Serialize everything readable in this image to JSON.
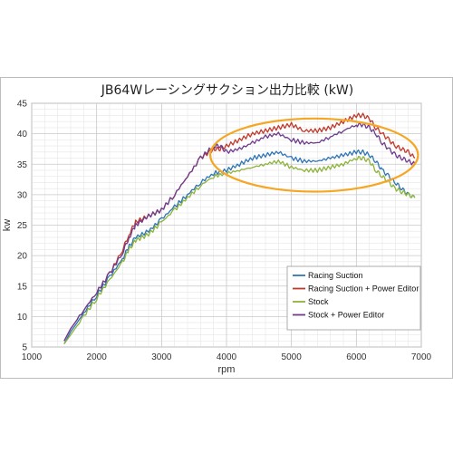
{
  "chart_data": {
    "type": "line",
    "title": "JB64Wレーシングサクション出力比較 (kW)",
    "xlabel": "rpm",
    "ylabel": "kw",
    "xlim": [
      1000,
      7000
    ],
    "ylim": [
      5,
      45
    ],
    "xticks": [
      "1000",
      "2000",
      "3000",
      "4000",
      "5000",
      "6000",
      "7000"
    ],
    "yticks": [
      "5",
      "10",
      "15",
      "20",
      "25",
      "30",
      "35",
      "40",
      "45"
    ],
    "grid": true,
    "legend_position": "bottom-right",
    "highlight": {
      "shape": "ellipse",
      "color": "#F5A623",
      "x_range": [
        3750,
        6950
      ],
      "y_range": [
        30.5,
        42.5
      ]
    },
    "series": [
      {
        "name": "Racing Suction",
        "color": "#2E75B6",
        "points": [
          [
            1500,
            5.5
          ],
          [
            1600,
            7.5
          ],
          [
            1800,
            10.5
          ],
          [
            2000,
            13.5
          ],
          [
            2200,
            16.5
          ],
          [
            2400,
            19.5
          ],
          [
            2500,
            21.5
          ],
          [
            2600,
            23
          ],
          [
            2800,
            24
          ],
          [
            3000,
            26
          ],
          [
            3200,
            28
          ],
          [
            3400,
            30
          ],
          [
            3600,
            32
          ],
          [
            3800,
            33.5
          ],
          [
            4000,
            34
          ],
          [
            4200,
            35
          ],
          [
            4400,
            36
          ],
          [
            4600,
            36.5
          ],
          [
            4800,
            37
          ],
          [
            5000,
            36
          ],
          [
            5200,
            35.5
          ],
          [
            5400,
            35.5
          ],
          [
            5600,
            36
          ],
          [
            5800,
            36.5
          ],
          [
            6000,
            37
          ],
          [
            6100,
            37
          ],
          [
            6200,
            36.5
          ],
          [
            6300,
            35.5
          ],
          [
            6400,
            34
          ],
          [
            6500,
            33
          ],
          [
            6600,
            32
          ],
          [
            6700,
            31
          ],
          [
            6800,
            30
          ],
          [
            6900,
            29.5
          ]
        ]
      },
      {
        "name": "Racing Suction + Power Editor",
        "color": "#C0392B",
        "points": [
          [
            1500,
            6
          ],
          [
            1600,
            8
          ],
          [
            1800,
            11
          ],
          [
            2000,
            14
          ],
          [
            2200,
            17
          ],
          [
            2400,
            21
          ],
          [
            2500,
            23.5
          ],
          [
            2600,
            25.5
          ],
          [
            2800,
            26.5
          ],
          [
            3000,
            27.5
          ],
          [
            3200,
            30
          ],
          [
            3400,
            33
          ],
          [
            3600,
            36
          ],
          [
            3800,
            37.5
          ],
          [
            3900,
            37.5
          ],
          [
            4000,
            38
          ],
          [
            4200,
            39
          ],
          [
            4400,
            40
          ],
          [
            4600,
            40.5
          ],
          [
            4800,
            41
          ],
          [
            5000,
            41.5
          ],
          [
            5200,
            40.5
          ],
          [
            5400,
            40.5
          ],
          [
            5600,
            41
          ],
          [
            5800,
            42
          ],
          [
            6000,
            43
          ],
          [
            6100,
            43
          ],
          [
            6200,
            42.5
          ],
          [
            6300,
            41
          ],
          [
            6400,
            40
          ],
          [
            6500,
            39
          ],
          [
            6600,
            38
          ],
          [
            6700,
            37.5
          ],
          [
            6800,
            37
          ],
          [
            6900,
            36
          ]
        ]
      },
      {
        "name": "Stock",
        "color": "#8DB33A",
        "points": [
          [
            1500,
            5.5
          ],
          [
            1600,
            7
          ],
          [
            1800,
            10
          ],
          [
            2000,
            13
          ],
          [
            2200,
            16
          ],
          [
            2400,
            19
          ],
          [
            2500,
            21
          ],
          [
            2600,
            22.5
          ],
          [
            2800,
            23.5
          ],
          [
            3000,
            25.5
          ],
          [
            3200,
            27.5
          ],
          [
            3400,
            29.5
          ],
          [
            3600,
            31.5
          ],
          [
            3800,
            33
          ],
          [
            4000,
            33.5
          ],
          [
            4200,
            34
          ],
          [
            4400,
            34.5
          ],
          [
            4600,
            35
          ],
          [
            4800,
            35.5
          ],
          [
            5000,
            34.5
          ],
          [
            5200,
            34
          ],
          [
            5400,
            34
          ],
          [
            5600,
            34.5
          ],
          [
            5800,
            35
          ],
          [
            6000,
            36
          ],
          [
            6100,
            36
          ],
          [
            6200,
            35.5
          ],
          [
            6300,
            34
          ],
          [
            6400,
            33
          ],
          [
            6500,
            32
          ],
          [
            6600,
            31
          ],
          [
            6700,
            30.5
          ],
          [
            6800,
            30
          ],
          [
            6900,
            29.5
          ]
        ]
      },
      {
        "name": "Stock + Power Editor",
        "color": "#6E3B8E",
        "points": [
          [
            1500,
            6
          ],
          [
            1600,
            8
          ],
          [
            1800,
            11
          ],
          [
            2000,
            14
          ],
          [
            2200,
            17
          ],
          [
            2400,
            20.5
          ],
          [
            2500,
            23
          ],
          [
            2600,
            25
          ],
          [
            2800,
            26.5
          ],
          [
            3000,
            27.5
          ],
          [
            3200,
            30
          ],
          [
            3400,
            33
          ],
          [
            3600,
            36
          ],
          [
            3800,
            38
          ],
          [
            3900,
            38
          ],
          [
            4000,
            37
          ],
          [
            4200,
            37.5
          ],
          [
            4400,
            38.5
          ],
          [
            4600,
            39.5
          ],
          [
            4800,
            40
          ],
          [
            5000,
            39
          ],
          [
            5200,
            38.5
          ],
          [
            5400,
            38.5
          ],
          [
            5600,
            39.5
          ],
          [
            5800,
            40.5
          ],
          [
            6000,
            41.5
          ],
          [
            6100,
            41.5
          ],
          [
            6200,
            41
          ],
          [
            6300,
            40
          ],
          [
            6400,
            38.5
          ],
          [
            6500,
            37.5
          ],
          [
            6600,
            36.5
          ],
          [
            6700,
            36
          ],
          [
            6800,
            35.5
          ],
          [
            6900,
            35
          ]
        ]
      }
    ]
  }
}
